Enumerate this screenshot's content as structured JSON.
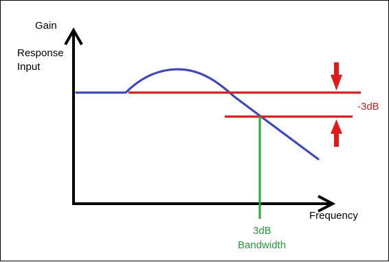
{
  "labels": {
    "y_axis_top": "Gain",
    "y_axis_line1": "Response",
    "y_axis_line2": "Input",
    "x_axis": "Frequency",
    "minus_3db": "-3dB",
    "bandwidth_line1": "3dB",
    "bandwidth_line2": "Bandwidth"
  },
  "colors": {
    "axes": "#000000",
    "response_curve": "#3c46c8",
    "reference_lines": "#e01b1b",
    "arrows": "#e01b1b",
    "bandwidth_marker": "#22aa3a",
    "bandwidth_text": "#1e9e36",
    "text": "#000000",
    "minus_3db_text": "#e01b1b"
  }
}
